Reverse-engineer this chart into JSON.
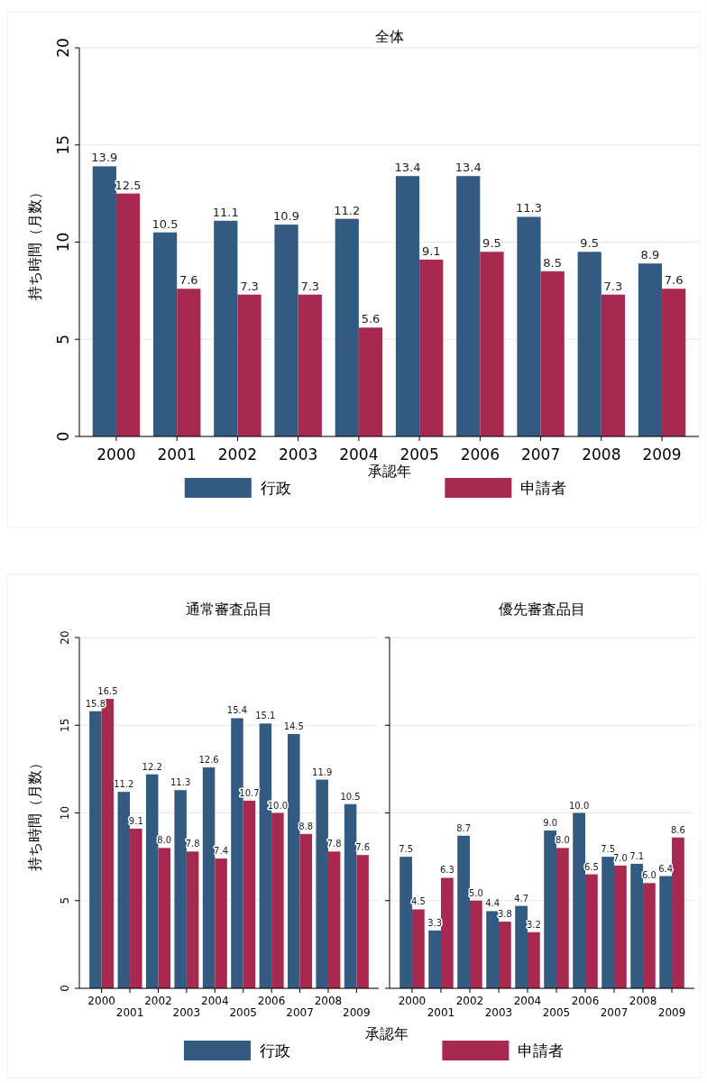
{
  "chart_data": [
    {
      "type": "bar",
      "title": "全体",
      "xlabel": "承認年",
      "ylabel": "持ち時間（月数）",
      "categories": [
        "2000",
        "2001",
        "2002",
        "2003",
        "2004",
        "2005",
        "2006",
        "2007",
        "2008",
        "2009"
      ],
      "ylim": [
        0,
        20
      ],
      "yticks": [
        0,
        5,
        10,
        15,
        20
      ],
      "grid": "y",
      "legend": "bottom",
      "series": [
        {
          "name": "行政",
          "color": "#335a80",
          "values": [
            13.9,
            10.5,
            11.1,
            10.9,
            11.2,
            13.4,
            13.4,
            11.3,
            9.5,
            8.9
          ],
          "value_labels": [
            "13.9",
            "10.5",
            "11.1",
            "10.9",
            "11.2",
            "13.4",
            "13.4",
            "11.3",
            "9.5",
            "8.9"
          ]
        },
        {
          "name": "申請者",
          "color": "#a8294f",
          "values": [
            12.5,
            7.6,
            7.3,
            7.3,
            5.6,
            9.1,
            9.5,
            8.5,
            7.3,
            7.6
          ],
          "value_labels": [
            "12.5",
            "7.6",
            "7.3",
            "7.3",
            "5.6",
            "9.1",
            "9.5",
            "8.5",
            "7.3",
            "7.6"
          ]
        }
      ]
    },
    {
      "type": "bar",
      "title": "通常審査品目",
      "xlabel": "承認年",
      "ylabel": "持ち時間（月数）",
      "categories": [
        "2000",
        "2001",
        "2002",
        "2003",
        "2004",
        "2005",
        "2006",
        "2007",
        "2008",
        "2009"
      ],
      "ylim": [
        0,
        20
      ],
      "yticks": [
        0,
        5,
        10,
        15,
        20
      ],
      "grid": "y",
      "legend": "bottom",
      "series": [
        {
          "name": "行政",
          "color": "#335a80",
          "values": [
            15.8,
            11.2,
            12.2,
            11.3,
            12.6,
            15.4,
            15.1,
            14.5,
            11.9,
            10.5
          ],
          "value_labels": [
            "15.8",
            "11.2",
            "12.2",
            "11.3",
            "12.6",
            "15.4",
            "15.1",
            "14.5",
            "11.9",
            "10.5"
          ]
        },
        {
          "name": "申請者",
          "color": "#a8294f",
          "values": [
            16.5,
            9.1,
            8.0,
            7.8,
            7.4,
            10.7,
            10.0,
            8.8,
            7.8,
            7.6
          ],
          "value_labels": [
            "16.5",
            "9.1",
            "8.0",
            "7.8",
            "7.4",
            "10.7",
            "10.0",
            "8.8",
            "7.8",
            "7.6"
          ]
        }
      ]
    },
    {
      "type": "bar",
      "title": "優先審査品目",
      "categories": [
        "2000",
        "2001",
        "2002",
        "2003",
        "2004",
        "2005",
        "2006",
        "2007",
        "2008",
        "2009"
      ],
      "ylim": [
        0,
        20
      ],
      "yticks": [
        0,
        5,
        10,
        15,
        20
      ],
      "grid": "y",
      "tick_labels": "x",
      "series": [
        {
          "color": "#335a80",
          "values": [
            7.5,
            3.3,
            8.7,
            4.4,
            4.7,
            9.0,
            10.0,
            7.5,
            7.1,
            6.4
          ],
          "value_labels": [
            "7.5",
            "3.3",
            "8.7",
            "4.4",
            "4.7",
            "9.0",
            "10.0",
            "7.5",
            "7.1",
            "6.4"
          ]
        },
        {
          "color": "#a8294f",
          "values": [
            4.5,
            6.3,
            5.0,
            3.8,
            3.2,
            8.0,
            6.5,
            7.0,
            6.0,
            8.6
          ],
          "value_labels": [
            "4.5",
            "6.3",
            "5.0",
            "3.8",
            "3.2",
            "8.0",
            "6.5",
            "7.0",
            "6.0",
            "8.6"
          ]
        }
      ]
    }
  ]
}
